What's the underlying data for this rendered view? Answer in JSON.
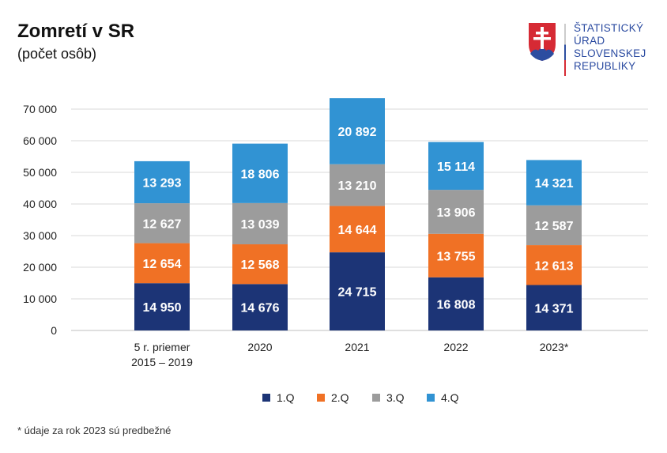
{
  "logo": {
    "lines": [
      "ŠTATISTICKÝ",
      "ÚRAD",
      "SLOVENSKEJ",
      "REPUBLIKY"
    ]
  },
  "note": "* údaje za rok 2023 sú predbežné",
  "chart_data": {
    "type": "bar",
    "stacked": true,
    "title": "Zomretí v SR",
    "subtitle": "(počet osôb)",
    "categories": [
      [
        "5 r. priemer",
        "2015 – 2019"
      ],
      [
        "2020"
      ],
      [
        "2021"
      ],
      [
        "2022"
      ],
      [
        "2023*"
      ]
    ],
    "series": [
      {
        "name": "1.Q",
        "color": "#1c3476",
        "values": [
          14950,
          14676,
          24715,
          16808,
          14371
        ],
        "labels": [
          "14 950",
          "14 676",
          "24 715",
          "16 808",
          "14 371"
        ]
      },
      {
        "name": "2.Q",
        "color": "#f07125",
        "values": [
          12654,
          12568,
          14644,
          13755,
          12613
        ],
        "labels": [
          "12 654",
          "12 568",
          "14 644",
          "13 755",
          "12 613"
        ]
      },
      {
        "name": "3.Q",
        "color": "#9c9c9c",
        "values": [
          12627,
          13039,
          13210,
          13906,
          12587
        ],
        "labels": [
          "12 627",
          "13 039",
          "13 210",
          "13 906",
          "12 587"
        ]
      },
      {
        "name": "4.Q",
        "color": "#3193d3",
        "values": [
          13293,
          18806,
          20892,
          15114,
          14321
        ],
        "labels": [
          "13 293",
          "18 806",
          "20 892",
          "15 114",
          "14 321"
        ]
      }
    ],
    "ylim": [
      0,
      70000
    ],
    "yticks": [
      0,
      10000,
      20000,
      30000,
      40000,
      50000,
      60000,
      70000
    ],
    "ytick_labels": [
      "0",
      "10 000",
      "20 000",
      "30 000",
      "40 000",
      "50 000",
      "60 000",
      "70 000"
    ],
    "grid": true,
    "legend": "bottom"
  }
}
